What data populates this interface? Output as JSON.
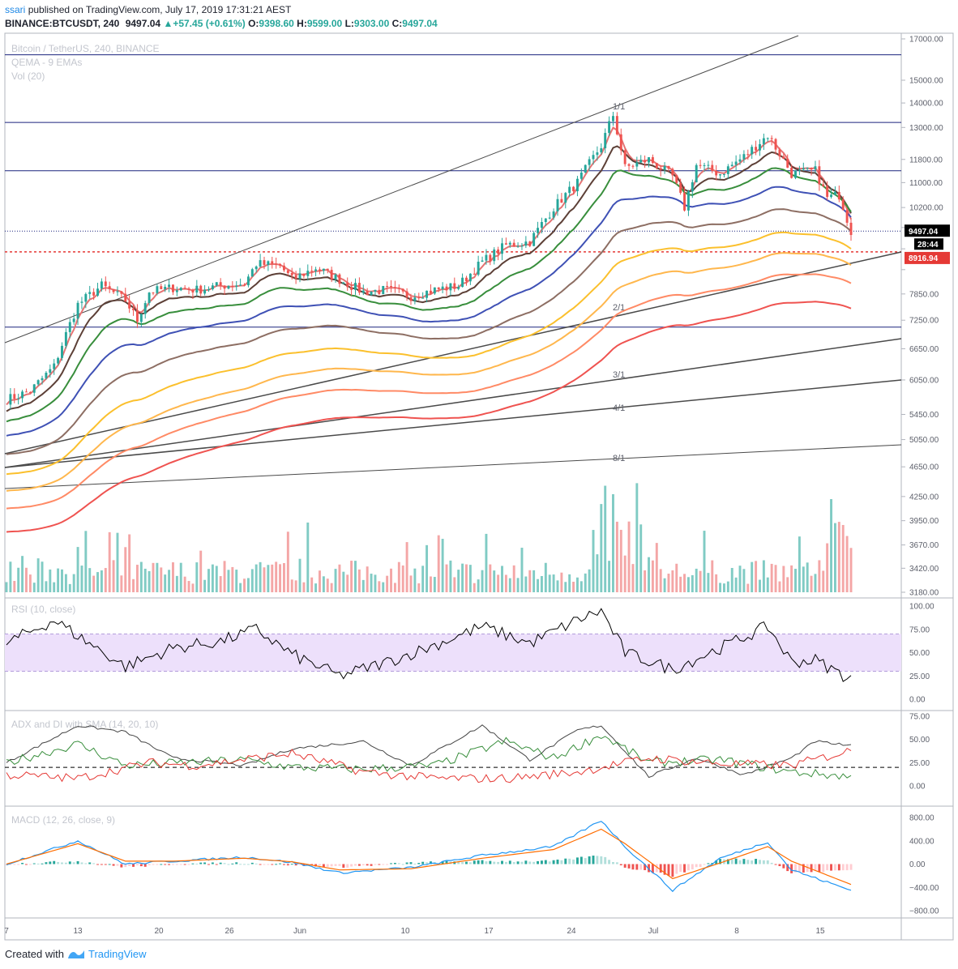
{
  "header": {
    "user": "ssari",
    "published_text": "published on TradingView.com, July 17, 2019 17:31:21 AEST",
    "symbol": "BINANCE:BTCUSDT, 240",
    "price": "9497.04",
    "change_arrow": "▲",
    "change": "+57.45 (+0.61%)",
    "o_label": "O:",
    "o": "9398.60",
    "h_label": "H:",
    "h": "9599.00",
    "l_label": "L:",
    "l": "9303.00",
    "c_label": "C:",
    "c": "9497.04"
  },
  "panes": {
    "main": {
      "title": "Bitcoin / TetherUS, 240, BINANCE",
      "line2": "QEMA - 9 EMAs",
      "line3": "Vol (20)"
    },
    "rsi": {
      "title": "RSI (10, close)"
    },
    "adx": {
      "title": "ADX and DI with SMA (14, 20, 10)"
    },
    "macd": {
      "title": "MACD (12, 26, close, 9)"
    }
  },
  "price_labels": {
    "last": "9497.04",
    "countdown": "28:44",
    "level": "8916.94"
  },
  "fan_labels": [
    "1/1",
    "2/1",
    "3/1",
    "4/1",
    "8/1"
  ],
  "footer": {
    "created_with": "Created with",
    "brand": "TradingView"
  },
  "colors": {
    "up": "#26a69a",
    "down": "#ef5350",
    "vol_up": "#80cbc4",
    "vol_down": "#f4a6a6",
    "hline": "#1a237e",
    "dashed_level": "#e53935",
    "rsi_band": "#ede0fb",
    "ema": [
      "#e57373",
      "#5d4037",
      "#388e3c",
      "#3f51b5",
      "#8d6e63",
      "#fbc02d",
      "#ffb74d",
      "#ff8a65",
      "#ef5350"
    ]
  },
  "chart_data": [
    {
      "type": "candlestick",
      "title": "Bitcoin / TetherUS, 240, BINANCE",
      "x_ticks": [
        "7",
        "13",
        "20",
        "26",
        "Jun",
        "10",
        "17",
        "24",
        "Jul",
        "8",
        "15"
      ],
      "y_ticks": [
        17000,
        15000,
        14000,
        13000,
        11800,
        11000,
        10200,
        9600,
        9000,
        8450,
        7850,
        7250,
        6650,
        6050,
        5450,
        5050,
        4650,
        4250,
        3950,
        3670,
        3420,
        3180
      ],
      "y_tick_labels": [
        "17000.00",
        "15000.00",
        "14000.00",
        "13000.00",
        "11800.00",
        "11000.00",
        "10200.00",
        "",
        "",
        "",
        "7850.00",
        "7250.00",
        "6650.00",
        "6050.00",
        "5450.00",
        "5050.00",
        "4650.00",
        "4250.00",
        "3950.00",
        "3670.00",
        "3420.00",
        "3180.00"
      ],
      "log_scale": true,
      "close_key_points": [
        [
          0,
          5700
        ],
        [
          6,
          5850
        ],
        [
          12,
          6300
        ],
        [
          18,
          7600
        ],
        [
          24,
          8050
        ],
        [
          30,
          7700
        ],
        [
          33,
          7250
        ],
        [
          36,
          7900
        ],
        [
          42,
          8000
        ],
        [
          48,
          7950
        ],
        [
          54,
          8050
        ],
        [
          60,
          8100
        ],
        [
          63,
          8600
        ],
        [
          69,
          8550
        ],
        [
          72,
          8200
        ],
        [
          78,
          8500
        ],
        [
          84,
          8200
        ],
        [
          90,
          7900
        ],
        [
          96,
          7950
        ],
        [
          102,
          7800
        ],
        [
          108,
          7950
        ],
        [
          114,
          8050
        ],
        [
          120,
          8650
        ],
        [
          126,
          9100
        ],
        [
          132,
          9200
        ],
        [
          138,
          10200
        ],
        [
          144,
          11000
        ],
        [
          150,
          12300
        ],
        [
          153,
          13500
        ],
        [
          156,
          11500
        ],
        [
          162,
          11800
        ],
        [
          168,
          11200
        ],
        [
          171,
          10200
        ],
        [
          174,
          11600
        ],
        [
          180,
          11300
        ],
        [
          186,
          11900
        ],
        [
          192,
          12700
        ],
        [
          198,
          11300
        ],
        [
          204,
          11400
        ],
        [
          207,
          10500
        ],
        [
          210,
          10600
        ],
        [
          213,
          9497.04
        ]
      ],
      "horizontal_levels": [
        16200,
        13200,
        11400,
        9497.04,
        8916.94,
        7100
      ],
      "fan_lines": [
        "1/1",
        "2/1",
        "3/1",
        "4/1",
        "8/1"
      ],
      "ema_count": 9
    },
    {
      "type": "line",
      "title": "RSI (10, close)",
      "y_ticks": [
        100,
        75,
        50,
        25,
        0
      ],
      "y_tick_labels": [
        "100.00",
        "75.00",
        "50.00",
        "25.00",
        "0.00"
      ],
      "band": [
        30,
        70
      ],
      "key_points": [
        [
          0,
          60
        ],
        [
          12,
          85
        ],
        [
          18,
          68
        ],
        [
          30,
          35
        ],
        [
          42,
          55
        ],
        [
          54,
          62
        ],
        [
          63,
          75
        ],
        [
          72,
          48
        ],
        [
          84,
          25
        ],
        [
          96,
          40
        ],
        [
          108,
          58
        ],
        [
          120,
          78
        ],
        [
          132,
          60
        ],
        [
          144,
          85
        ],
        [
          150,
          95
        ],
        [
          156,
          50
        ],
        [
          168,
          32
        ],
        [
          180,
          55
        ],
        [
          192,
          78
        ],
        [
          198,
          40
        ],
        [
          204,
          42
        ],
        [
          210,
          28
        ],
        [
          213,
          22
        ]
      ]
    },
    {
      "type": "line",
      "title": "ADX and DI with SMA (14, 20, 10)",
      "y_ticks": [
        75,
        50,
        25,
        0
      ],
      "y_tick_labels": [
        "75.00",
        "50.00",
        "25.00",
        "0.00"
      ],
      "series": [
        {
          "key_points": [
            [
              0,
              25
            ],
            [
              18,
              65
            ],
            [
              30,
              58
            ],
            [
              42,
              30
            ],
            [
              60,
              22
            ],
            [
              72,
              40
            ],
            [
              90,
              48
            ],
            [
              102,
              22
            ],
            [
              120,
              65
            ],
            [
              132,
              28
            ],
            [
              144,
              60
            ],
            [
              150,
              65
            ],
            [
              162,
              10
            ],
            [
              174,
              30
            ],
            [
              186,
              12
            ],
            [
              198,
              30
            ],
            [
              204,
              48
            ],
            [
              213,
              43
            ]
          ]
        },
        {
          "key_points": [
            [
              0,
              25
            ],
            [
              18,
              45
            ],
            [
              30,
              22
            ],
            [
              60,
              28
            ],
            [
              72,
              20
            ],
            [
              90,
              18
            ],
            [
              108,
              22
            ],
            [
              126,
              48
            ],
            [
              138,
              30
            ],
            [
              150,
              55
            ],
            [
              162,
              25
            ],
            [
              180,
              28
            ],
            [
              198,
              15
            ],
            [
              213,
              10
            ]
          ]
        },
        {
          "key_points": [
            [
              0,
              12
            ],
            [
              18,
              8
            ],
            [
              36,
              25
            ],
            [
              48,
              22
            ],
            [
              72,
              35
            ],
            [
              90,
              15
            ],
            [
              108,
              8
            ],
            [
              126,
              8
            ],
            [
              144,
              15
            ],
            [
              162,
              30
            ],
            [
              180,
              24
            ],
            [
              198,
              22
            ],
            [
              213,
              38
            ]
          ]
        }
      ],
      "reference_line": 20
    },
    {
      "type": "line",
      "title": "MACD (12, 26, close, 9)",
      "y_ticks": [
        800,
        400,
        0,
        -400,
        -800
      ],
      "y_tick_labels": [
        "800.00",
        "400.00",
        "0.00",
        "−400.00",
        "−800.00"
      ],
      "series": [
        {
          "key_points": [
            [
              0,
              0
            ],
            [
              18,
              400
            ],
            [
              30,
              0
            ],
            [
              42,
              50
            ],
            [
              60,
              120
            ],
            [
              72,
              30
            ],
            [
              84,
              -150
            ],
            [
              102,
              -60
            ],
            [
              120,
              150
            ],
            [
              138,
              300
            ],
            [
              150,
              750
            ],
            [
              156,
              300
            ],
            [
              168,
              -450
            ],
            [
              180,
              100
            ],
            [
              192,
              380
            ],
            [
              198,
              -100
            ],
            [
              213,
              -450
            ]
          ]
        },
        {
          "key_points": [
            [
              0,
              0
            ],
            [
              18,
              350
            ],
            [
              30,
              50
            ],
            [
              42,
              50
            ],
            [
              60,
              100
            ],
            [
              72,
              40
            ],
            [
              84,
              -100
            ],
            [
              102,
              -80
            ],
            [
              120,
              100
            ],
            [
              138,
              250
            ],
            [
              150,
              600
            ],
            [
              156,
              350
            ],
            [
              168,
              -250
            ],
            [
              180,
              20
            ],
            [
              192,
              300
            ],
            [
              198,
              50
            ],
            [
              213,
              -350
            ]
          ]
        }
      ]
    }
  ]
}
